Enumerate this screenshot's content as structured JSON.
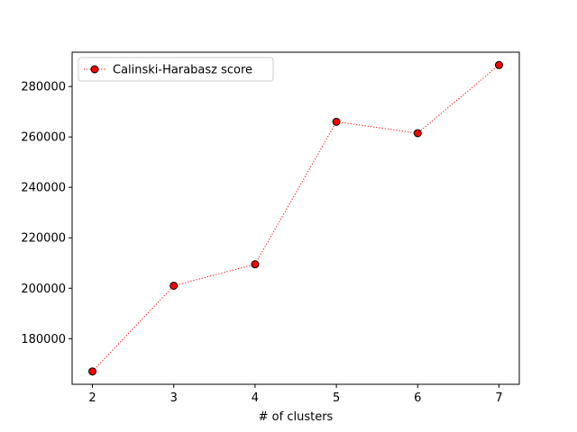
{
  "chart_data": {
    "type": "line",
    "x": [
      2,
      3,
      4,
      5,
      6,
      7
    ],
    "series": [
      {
        "name": "Calinski-Harabasz score",
        "values": [
          167000,
          201000,
          209500,
          266000,
          261500,
          288500
        ],
        "color": "#ff0000",
        "line_style": "dotted",
        "marker": "circle",
        "marker_face_color": "#ff0000",
        "marker_edge_color": "#000000"
      }
    ],
    "xlabel": "# of clusters",
    "ylabel": "",
    "title": "",
    "xlim": [
      1.75,
      7.25
    ],
    "ylim": [
      161900,
      293600
    ],
    "x_ticks": [
      2,
      3,
      4,
      5,
      6,
      7
    ],
    "y_ticks": [
      180000,
      200000,
      220000,
      240000,
      260000,
      280000
    ],
    "grid": false,
    "legend_position": "upper-left"
  }
}
